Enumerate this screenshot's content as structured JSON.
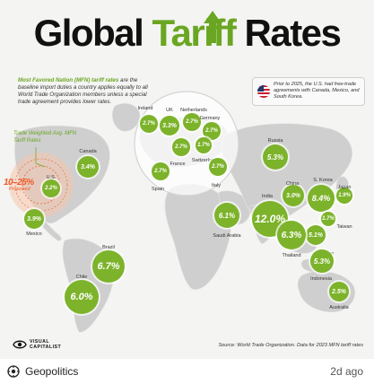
{
  "title": {
    "part1": "Global",
    "part2": "Tariff",
    "part3": "Rates"
  },
  "intro": {
    "highlight": "Most Favored Nation (MFN) tariff rates",
    "rest": " are the baseline import duties a country applies equally to all World Trade Organization members unless a special trade agreement provides lower rates."
  },
  "note": {
    "text": "Prior to 2025, the U.S. had free-trade agreements with Canada, Mexico, and South Korea.",
    "flag_icon": "us-flag-icon"
  },
  "legend": {
    "trade_weighted": "Trade Weighted Avg. MFN Tariff Rates",
    "proposed_value": "10–25%",
    "proposed_label": "Proposed"
  },
  "countries": [
    {
      "name": "Canada",
      "rate": "3.4%"
    },
    {
      "name": "U.S.",
      "rate": "2.2%"
    },
    {
      "name": "Mexico",
      "rate": "3.9%"
    },
    {
      "name": "Brazil",
      "rate": "6.7%"
    },
    {
      "name": "Chile",
      "rate": "6.0%"
    },
    {
      "name": "Ireland",
      "rate": "2.7%"
    },
    {
      "name": "UK",
      "rate": "3.3%"
    },
    {
      "name": "Netherlands",
      "rate": "2.7%"
    },
    {
      "name": "Germany",
      "rate": "2.7%"
    },
    {
      "name": "France",
      "rate": "2.7%"
    },
    {
      "name": "Switzerland",
      "rate": "1.7%"
    },
    {
      "name": "Spain",
      "rate": "2.7%"
    },
    {
      "name": "Italy",
      "rate": "2.7%"
    },
    {
      "name": "Russia",
      "rate": "5.3%"
    },
    {
      "name": "India",
      "rate": "12.0%"
    },
    {
      "name": "China",
      "rate": "3.0%"
    },
    {
      "name": "S. Korea",
      "rate": "8.4%"
    },
    {
      "name": "Japan",
      "rate": "1.9%"
    },
    {
      "name": "Taiwan",
      "rate": "1.7%"
    },
    {
      "name": "Vietnam",
      "rate": "5.1%"
    },
    {
      "name": "Thailand",
      "rate": "6.3%"
    },
    {
      "name": "Saudi Arabia",
      "rate": "6.1%"
    },
    {
      "name": "Indonesia",
      "rate": "5.3%"
    },
    {
      "name": "Australia",
      "rate": "2.5%"
    }
  ],
  "brand": {
    "line1": "VISUAL",
    "line2": "CAPITALIST"
  },
  "source": "Source: World Trade Organization. Data for 2023 MFN tariff rates",
  "footer": {
    "group": "Geopolitics",
    "time": "2d ago",
    "group_icon": "geopolitics-group-icon"
  },
  "colors": {
    "accent": "#6aa622",
    "bubble": "#7cb32a",
    "proposed": "#ee5a2a",
    "land": "#cfcfcf"
  }
}
